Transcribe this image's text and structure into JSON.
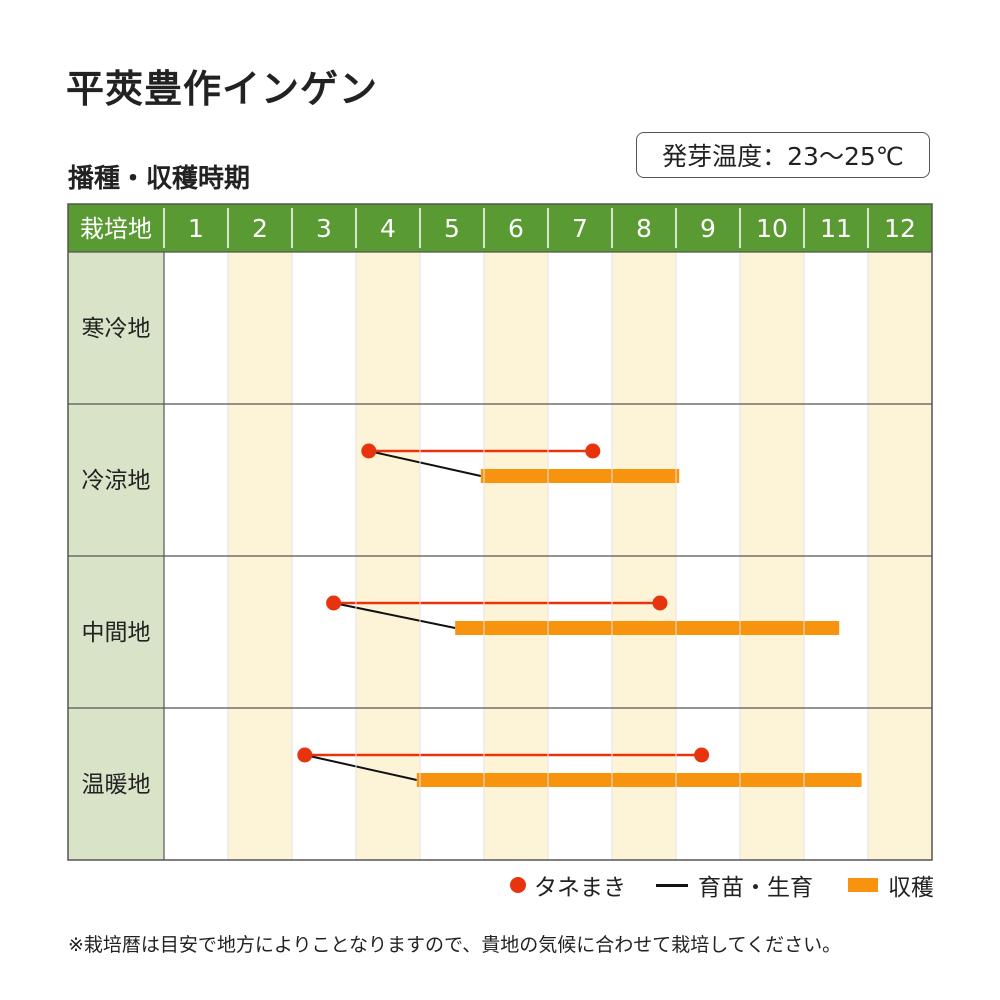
{
  "title": "平莢豊作インゲン",
  "subtitle": "播種・収穫時期",
  "germination": "発芽温度：23～25℃",
  "note": "※栽培暦は目安で地方によりことなりますので、貴地の気候に合わせて栽培してください。",
  "legend": {
    "sowing": "タネまき",
    "seedling": "育苗・生育",
    "harvest": "収穫"
  },
  "colors": {
    "header": "#5a9a32",
    "row_label_bg": "#d8e3c8",
    "stripe": "#fdf3d6",
    "sowing": "#e8340e",
    "harvest": "#f7930e",
    "seedling": "#111111",
    "grid": "#555555"
  },
  "chart_data": {
    "type": "table",
    "header_label": "栽培地",
    "months": [
      "1",
      "2",
      "3",
      "4",
      "5",
      "6",
      "7",
      "8",
      "9",
      "10",
      "11",
      "12"
    ],
    "rows": [
      {
        "region": "寒冷地",
        "sowing": null,
        "harvest": null
      },
      {
        "region": "冷涼地",
        "sowing": [
          4.2,
          7.7
        ],
        "harvest": [
          5.95,
          9.05
        ]
      },
      {
        "region": "中間地",
        "sowing": [
          3.65,
          8.75
        ],
        "harvest": [
          5.55,
          11.55
        ]
      },
      {
        "region": "温暖地",
        "sowing": [
          3.2,
          9.4
        ],
        "harvest": [
          4.95,
          11.9
        ]
      }
    ]
  }
}
